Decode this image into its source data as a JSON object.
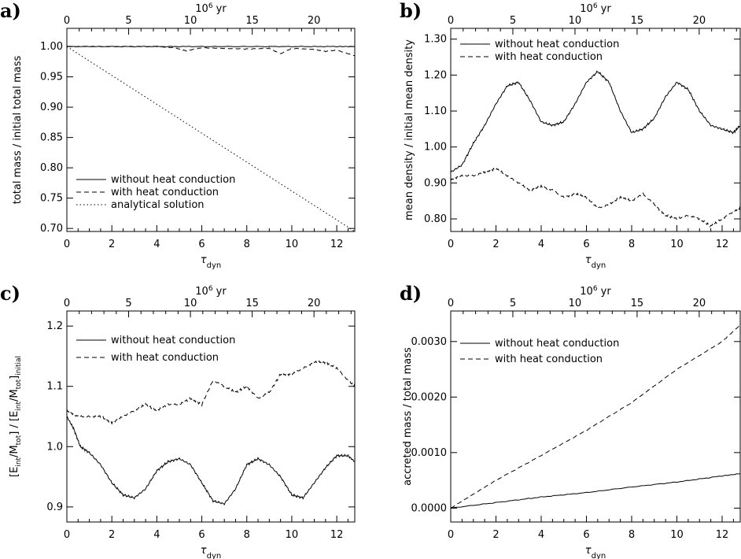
{
  "chart_data": [
    {
      "id": "a",
      "type": "line",
      "panel_label": "a)",
      "xlabel": "τ",
      "xlabel_sub": "dyn",
      "ylabel": "total mass / initial total mass",
      "top_axis_label": "10",
      "top_axis_label_sup": "6",
      "top_axis_unit": "yr",
      "xlim": [
        0,
        12.8
      ],
      "ylim": [
        0.695,
        1.03
      ],
      "xticks": [
        0,
        2,
        4,
        6,
        8,
        10,
        12
      ],
      "xtick_labels": [
        "0",
        "2",
        "4",
        "6",
        "8",
        "10",
        "12"
      ],
      "yticks": [
        0.7,
        0.75,
        0.8,
        0.85,
        0.9,
        0.95,
        1.0
      ],
      "ytick_labels": [
        "0.70",
        "0.75",
        "0.80",
        "0.85",
        "0.90",
        "0.95",
        "1.00"
      ],
      "top_xticks": [
        0,
        5,
        10,
        15,
        20
      ],
      "top_xtick_labels": [
        "0",
        "5",
        "10",
        "15",
        "20"
      ],
      "legend_position": "bottom-left",
      "series": [
        {
          "name": "without heat conduction",
          "dash": "solid",
          "x": [
            0,
            2,
            4,
            6,
            8,
            10,
            12,
            12.8
          ],
          "y": [
            1.0,
            1.0,
            1.0,
            1.0,
            1.0,
            1.0,
            1.0,
            1.0
          ]
        },
        {
          "name": "with heat conduction",
          "dash": "dashed",
          "x": [
            0,
            2,
            4,
            4.8,
            5.3,
            6,
            7,
            8,
            9,
            9.5,
            10,
            11,
            11.5,
            12,
            12.8
          ],
          "y": [
            1.0,
            1.0,
            1.0,
            0.998,
            0.993,
            0.998,
            0.997,
            0.996,
            0.997,
            0.988,
            0.997,
            0.995,
            0.992,
            0.994,
            0.985
          ]
        },
        {
          "name": "analytical solution",
          "dash": "dotted",
          "x": [
            0,
            12.8
          ],
          "y": [
            1.0,
            0.695
          ]
        }
      ]
    },
    {
      "id": "b",
      "type": "line",
      "panel_label": "b)",
      "xlabel": "τ",
      "xlabel_sub": "dyn",
      "ylabel": "mean density / initial mean density",
      "top_axis_label": "10",
      "top_axis_label_sup": "6",
      "top_axis_unit": "yr",
      "xlim": [
        0,
        12.8
      ],
      "ylim": [
        0.765,
        1.33
      ],
      "xticks": [
        0,
        2,
        4,
        6,
        8,
        10,
        12
      ],
      "xtick_labels": [
        "0",
        "2",
        "4",
        "6",
        "8",
        "10",
        "12"
      ],
      "yticks": [
        0.8,
        0.9,
        1.0,
        1.1,
        1.2,
        1.3
      ],
      "ytick_labels": [
        "0.80",
        "0.90",
        "1.00",
        "1.10",
        "1.20",
        "1.30"
      ],
      "top_xticks": [
        0,
        5,
        10,
        15,
        20
      ],
      "top_xtick_labels": [
        "0",
        "5",
        "10",
        "15",
        "20"
      ],
      "legend_position": "top-left",
      "series": [
        {
          "name": "without heat conduction",
          "dash": "solid",
          "x": [
            0,
            0.5,
            1,
            1.5,
            2,
            2.5,
            3,
            3.5,
            4,
            4.5,
            5,
            5.5,
            6,
            6.5,
            7,
            7.5,
            8,
            8.5,
            9,
            9.5,
            10,
            10.5,
            11,
            11.5,
            12,
            12.5,
            12.8
          ],
          "y": [
            0.93,
            0.95,
            1.01,
            1.06,
            1.12,
            1.17,
            1.18,
            1.13,
            1.07,
            1.06,
            1.07,
            1.12,
            1.18,
            1.21,
            1.18,
            1.1,
            1.04,
            1.05,
            1.08,
            1.14,
            1.18,
            1.16,
            1.1,
            1.06,
            1.05,
            1.04,
            1.06
          ]
        },
        {
          "name": "with heat conduction",
          "dash": "dashed",
          "x": [
            0,
            0.5,
            1,
            1.5,
            2,
            2.5,
            3,
            3.5,
            4,
            4.5,
            5,
            5.5,
            6,
            6.5,
            7,
            7.5,
            8,
            8.5,
            9,
            9.5,
            10,
            10.5,
            11,
            11.5,
            12,
            12.5,
            12.8
          ],
          "y": [
            0.91,
            0.92,
            0.92,
            0.93,
            0.94,
            0.92,
            0.9,
            0.88,
            0.89,
            0.88,
            0.86,
            0.87,
            0.86,
            0.83,
            0.84,
            0.86,
            0.85,
            0.87,
            0.84,
            0.81,
            0.8,
            0.81,
            0.8,
            0.78,
            0.8,
            0.82,
            0.83
          ]
        }
      ]
    },
    {
      "id": "c",
      "type": "line",
      "panel_label": "c)",
      "xlabel": "τ",
      "xlabel_sub": "dyn",
      "ylabel": "[E_int/M_tot] / [E_int/M_tot]_initial",
      "ylabel_parts": [
        "[E",
        "int",
        "/M",
        "tot",
        "] / [E",
        "int",
        "/M",
        "tot",
        "]",
        "initial"
      ],
      "top_axis_label": "10",
      "top_axis_label_sup": "6",
      "top_axis_unit": "yr",
      "xlim": [
        0,
        12.8
      ],
      "ylim": [
        0.875,
        1.225
      ],
      "xticks": [
        0,
        2,
        4,
        6,
        8,
        10,
        12
      ],
      "xtick_labels": [
        "0",
        "2",
        "4",
        "6",
        "8",
        "10",
        "12"
      ],
      "yticks": [
        0.9,
        1.0,
        1.1,
        1.2
      ],
      "ytick_labels": [
        "0.9",
        "1.0",
        "1.1",
        "1.2"
      ],
      "top_xticks": [
        0,
        5,
        10,
        15,
        20
      ],
      "top_xtick_labels": [
        "0",
        "5",
        "10",
        "15",
        "20"
      ],
      "legend_position": "top-left",
      "series": [
        {
          "name": "without heat conduction",
          "dash": "solid",
          "x": [
            0,
            0.3,
            0.6,
            1,
            1.5,
            2,
            2.5,
            3,
            3.5,
            4,
            4.5,
            5,
            5.5,
            6,
            6.5,
            7,
            7.5,
            8,
            8.5,
            9,
            9.5,
            10,
            10.5,
            11,
            11.5,
            12,
            12.5,
            12.8
          ],
          "y": [
            1.05,
            1.03,
            1.0,
            0.99,
            0.97,
            0.94,
            0.92,
            0.915,
            0.93,
            0.96,
            0.975,
            0.98,
            0.97,
            0.94,
            0.91,
            0.905,
            0.93,
            0.97,
            0.98,
            0.97,
            0.95,
            0.92,
            0.915,
            0.94,
            0.965,
            0.985,
            0.985,
            0.975
          ]
        },
        {
          "name": "with heat conduction",
          "dash": "dashed",
          "x": [
            0,
            0.5,
            1,
            1.5,
            2,
            2.5,
            3,
            3.5,
            4,
            4.5,
            5,
            5.5,
            6,
            6.5,
            7,
            7.5,
            8,
            8.5,
            9,
            9.5,
            10,
            10.5,
            11,
            11.5,
            12,
            12.5,
            12.8
          ],
          "y": [
            1.06,
            1.05,
            1.05,
            1.05,
            1.04,
            1.05,
            1.06,
            1.07,
            1.06,
            1.07,
            1.07,
            1.08,
            1.07,
            1.11,
            1.1,
            1.09,
            1.1,
            1.08,
            1.09,
            1.12,
            1.12,
            1.13,
            1.14,
            1.14,
            1.13,
            1.11,
            1.1
          ]
        }
      ]
    },
    {
      "id": "d",
      "type": "line",
      "panel_label": "d)",
      "xlabel": "τ",
      "xlabel_sub": "dyn",
      "ylabel": "accreted mass / total mass",
      "top_axis_label": "10",
      "top_axis_label_sup": "6",
      "top_axis_unit": "yr",
      "xlim": [
        0,
        12.8
      ],
      "ylim": [
        -0.00025,
        0.00355
      ],
      "xticks": [
        0,
        2,
        4,
        6,
        8,
        10,
        12
      ],
      "xtick_labels": [
        "0",
        "2",
        "4",
        "6",
        "8",
        "10",
        "12"
      ],
      "yticks": [
        0.0,
        0.001,
        0.002,
        0.003
      ],
      "ytick_labels": [
        "0.0000",
        "0.0010",
        "0.0020",
        "0.0030"
      ],
      "top_xticks": [
        0,
        5,
        10,
        15,
        20
      ],
      "top_xtick_labels": [
        "0",
        "5",
        "10",
        "15",
        "20"
      ],
      "legend_position": "top-left",
      "series": [
        {
          "name": "without heat conduction",
          "dash": "solid",
          "x": [
            0,
            2,
            4,
            6,
            8,
            10,
            12,
            12.8
          ],
          "y": [
            0.0,
            0.0001,
            0.0002,
            0.00028,
            0.00038,
            0.00047,
            0.00058,
            0.00062
          ]
        },
        {
          "name": "with heat conduction",
          "dash": "dashed",
          "x": [
            0,
            1,
            2,
            4,
            6,
            8,
            10,
            12,
            12.8
          ],
          "y": [
            0.0,
            0.00025,
            0.0005,
            0.00095,
            0.0014,
            0.0019,
            0.0025,
            0.003,
            0.0033
          ]
        }
      ]
    }
  ]
}
